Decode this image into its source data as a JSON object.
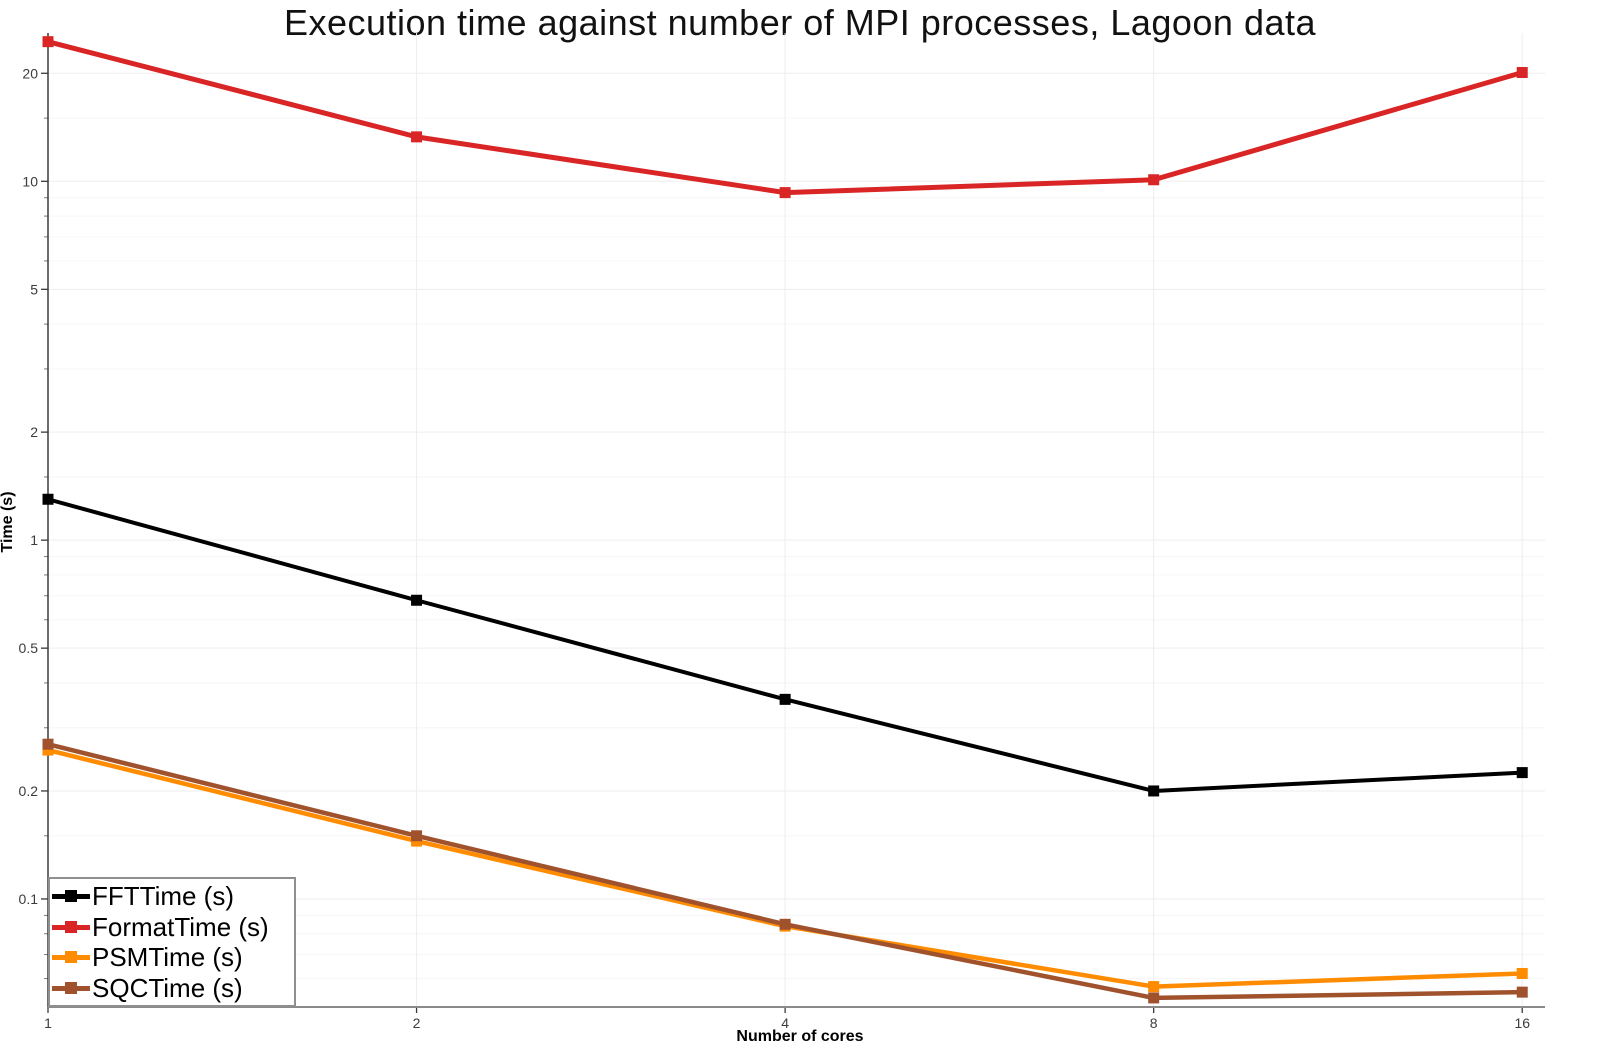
{
  "title": "Execution time against number of MPI processes, Lagoon data",
  "chart_data": {
    "type": "line",
    "title": "Execution time against number of MPI processes, Lagoon data",
    "xlabel": "Number of cores",
    "ylabel": "Time (s)",
    "x_scale": "log2",
    "y_scale": "log10",
    "x": [
      1,
      2,
      4,
      8,
      16
    ],
    "x_tick_labels": [
      "1",
      "2",
      "4",
      "8",
      "16"
    ],
    "y_tick_labels": [
      "20",
      "10",
      "5",
      "2",
      "1",
      "0.5",
      "0.2",
      "0.1"
    ],
    "y_ticks": [
      20,
      10,
      5,
      2,
      1,
      0.5,
      0.2,
      0.1
    ],
    "y_minor_ticks": [
      0.06,
      0.07,
      0.08,
      0.09,
      0.15,
      0.3,
      0.4,
      0.6,
      0.7,
      0.8,
      0.9,
      1.5,
      3,
      4,
      6,
      7,
      8,
      9,
      15
    ],
    "xlim": [
      1,
      16.7
    ],
    "ylim": [
      0.05,
      25.9
    ],
    "grid": true,
    "legend_position": "bottom-left",
    "marker": "square",
    "series": [
      {
        "name": "FFTTime (s)",
        "color": "#000000",
        "line_width": 4,
        "values": [
          1.3,
          0.68,
          0.36,
          0.2,
          0.225
        ]
      },
      {
        "name": "FormatTime (s)",
        "color": "#d92525",
        "line_width": 5,
        "values": [
          24.5,
          13.3,
          9.3,
          10.1,
          20.1
        ]
      },
      {
        "name": "PSMTime (s)",
        "color": "#ff8c00",
        "line_width": 4.5,
        "values": [
          0.26,
          0.145,
          0.084,
          0.057,
          0.062
        ]
      },
      {
        "name": "SQCTime (s)",
        "color": "#a0522d",
        "line_width": 4.5,
        "values": [
          0.27,
          0.15,
          0.085,
          0.053,
          0.055
        ]
      }
    ]
  },
  "colors": {
    "background": "#ffffff",
    "major_grid": "#ededed",
    "minor_grid": "#f6f6f6",
    "axis_left": "#3a3a3a",
    "axis_bottom": "#8a8a8a",
    "tick_label": "#3c3c3c"
  }
}
